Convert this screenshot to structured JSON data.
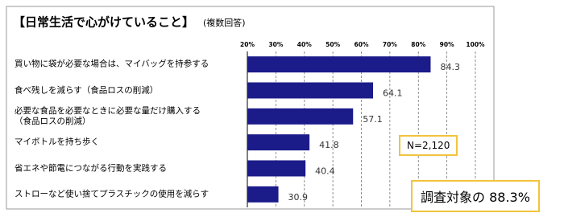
{
  "chart_data": {
    "type": "bar",
    "orientation": "horizontal",
    "title": "【日常生活で心がけていること】",
    "subtitle": "(複数回答)",
    "categories": [
      "買い物に袋が必要な場合は、マイバッグを持参する",
      "食べ残しを減らす（食品ロスの削減）",
      "必要な食品を必要なときに必要な量だけ購入する\n（食品ロスの削減）",
      "マイボトルを持ち歩く",
      "省エネや節電につながる行動を実践する",
      "ストローなど使い捨てプラスチックの使用を減らす"
    ],
    "values": [
      84.3,
      64.1,
      57.1,
      41.8,
      40.4,
      30.9
    ],
    "color": "#1b1b8a",
    "xlim": [
      20,
      100
    ],
    "xticks": [
      {
        "value": 20,
        "label": "20%"
      },
      {
        "value": 30,
        "label": "30%"
      },
      {
        "value": 40,
        "label": "40%"
      },
      {
        "value": 50,
        "label": "50%"
      },
      {
        "value": 60,
        "label": "60%"
      },
      {
        "value": 70,
        "label": "70%"
      },
      {
        "value": 80,
        "label": "80%"
      },
      {
        "value": 90,
        "label": "90%"
      },
      {
        "value": 100,
        "label": "100%"
      }
    ],
    "grid": true,
    "annotations": [
      "N=2,120",
      "調査対象の 88.3%"
    ]
  }
}
